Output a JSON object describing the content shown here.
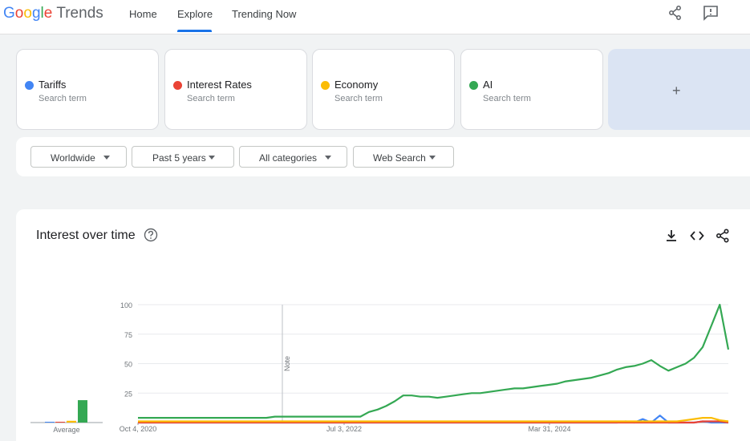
{
  "header": {
    "logo": {
      "word": [
        "G",
        "o",
        "o",
        "g",
        "l",
        "e"
      ],
      "product": "Trends"
    },
    "nav": {
      "home": "Home",
      "explore": "Explore",
      "trending": "Trending Now"
    },
    "icons": {
      "share": "share-icon",
      "feedback": "feedback-icon"
    }
  },
  "terms": [
    {
      "name": "Tariffs",
      "sub": "Search term",
      "color": "#4285f4"
    },
    {
      "name": "Interest Rates",
      "sub": "Search term",
      "color": "#ea4335"
    },
    {
      "name": "Economy",
      "sub": "Search term",
      "color": "#fbbc04"
    },
    {
      "name": "AI",
      "sub": "Search term",
      "color": "#34a853"
    }
  ],
  "add_term": {
    "label": "+"
  },
  "filters": {
    "region": "Worldwide",
    "time": "Past 5 years",
    "category": "All categories",
    "search_type": "Web Search"
  },
  "chart_panel": {
    "title": "Interest over time",
    "icons": {
      "help": "help-icon",
      "download": "download-icon",
      "embed": "embed-icon",
      "share": "share-icon"
    }
  },
  "chart_data": {
    "type": "line",
    "y_ticks": [
      "100",
      "75",
      "50",
      "25"
    ],
    "x_ticks": [
      "Oct 4, 2020",
      "Jul 3, 2022",
      "Mar 31, 2024"
    ],
    "ylim": [
      0,
      100
    ],
    "annotation": "Note",
    "average_label": "Average",
    "averages": [
      {
        "name": "Tariffs",
        "value": 0.3,
        "color": "#4285f4"
      },
      {
        "name": "Interest Rates",
        "value": 0.6,
        "color": "#ea4335"
      },
      {
        "name": "Economy",
        "value": 1.5,
        "color": "#fbbc04"
      },
      {
        "name": "AI",
        "value": 19,
        "color": "#34a853"
      }
    ],
    "series": [
      {
        "name": "Tariffs",
        "color": "#4285f4",
        "values": [
          0,
          0,
          0,
          0,
          0,
          0,
          0,
          0,
          0,
          0,
          0,
          0,
          0,
          0,
          0,
          0,
          0,
          0,
          0,
          0,
          0,
          0,
          0,
          0,
          0,
          0,
          0,
          0,
          0,
          0,
          0,
          0,
          0,
          0,
          0,
          0,
          0,
          0,
          0,
          0,
          0,
          0,
          0,
          0,
          0,
          0,
          0,
          0,
          0,
          0,
          0,
          0,
          0,
          0,
          0,
          0,
          0,
          1,
          0,
          3,
          0,
          6,
          0,
          0,
          0,
          0,
          1,
          0,
          0,
          0
        ]
      },
      {
        "name": "Interest Rates",
        "color": "#ea4335",
        "values": [
          0,
          0,
          0,
          0,
          0,
          0,
          0,
          0,
          0,
          0,
          0,
          0,
          0,
          0,
          0,
          0,
          0,
          0,
          0,
          0,
          0,
          0,
          0,
          0,
          0,
          0,
          0,
          0,
          0,
          0,
          0,
          0,
          0,
          0,
          0,
          0,
          0,
          0,
          0,
          0,
          0,
          0,
          0,
          0,
          0,
          0,
          0,
          0,
          0,
          0,
          0,
          0,
          0,
          0,
          0,
          0,
          0,
          0,
          0,
          0,
          0,
          0,
          0,
          0,
          0,
          0,
          1,
          1,
          1,
          0
        ]
      },
      {
        "name": "Economy",
        "color": "#fbbc04",
        "values": [
          1,
          1,
          1,
          1,
          1,
          1,
          1,
          1,
          1,
          1,
          1,
          1,
          1,
          1,
          1,
          1,
          1,
          1,
          1,
          1,
          1,
          1,
          1,
          1,
          1,
          1,
          1,
          1,
          1,
          1,
          1,
          1,
          1,
          1,
          1,
          1,
          1,
          1,
          1,
          1,
          1,
          1,
          1,
          1,
          1,
          1,
          1,
          1,
          1,
          1,
          1,
          1,
          1,
          1,
          1,
          1,
          1,
          1,
          1,
          1,
          1,
          1,
          1,
          1,
          2,
          3,
          4,
          4,
          2,
          1
        ]
      },
      {
        "name": "AI",
        "color": "#34a853",
        "values": [
          4,
          4,
          4,
          4,
          4,
          4,
          4,
          4,
          4,
          4,
          4,
          4,
          4,
          4,
          4,
          4,
          5,
          5,
          5,
          5,
          5,
          5,
          5,
          5,
          5,
          5,
          5,
          9,
          11,
          14,
          18,
          23,
          23,
          22,
          22,
          21,
          22,
          23,
          24,
          25,
          25,
          26,
          27,
          28,
          29,
          29,
          30,
          31,
          32,
          33,
          35,
          36,
          37,
          38,
          40,
          42,
          45,
          47,
          48,
          50,
          53,
          48,
          44,
          47,
          50,
          55,
          64,
          82,
          100,
          62
        ]
      }
    ]
  }
}
